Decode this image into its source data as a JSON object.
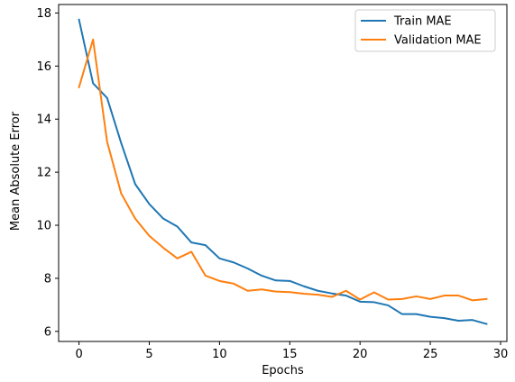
{
  "chart_data": {
    "type": "line",
    "title": "",
    "xlabel": "Epochs",
    "ylabel": "Mean Absolute Error",
    "xlim": [
      -1.45,
      30.45
    ],
    "ylim": [
      5.62,
      18.32
    ],
    "xticks": [
      0,
      5,
      10,
      15,
      20,
      25,
      30
    ],
    "yticks": [
      6,
      8,
      10,
      12,
      14,
      16,
      18
    ],
    "grid": false,
    "legend_position": "top-right",
    "x": [
      0,
      1,
      2,
      3,
      4,
      5,
      6,
      7,
      8,
      9,
      10,
      11,
      12,
      13,
      14,
      15,
      16,
      17,
      18,
      19,
      20,
      21,
      22,
      23,
      24,
      25,
      26,
      27,
      28,
      29
    ],
    "series": [
      {
        "name": "Train MAE",
        "color": "#1f77b4",
        "values": [
          17.75,
          15.35,
          14.8,
          13.1,
          11.55,
          10.8,
          10.25,
          9.95,
          9.35,
          9.25,
          8.75,
          8.6,
          8.37,
          8.1,
          7.92,
          7.9,
          7.7,
          7.53,
          7.43,
          7.35,
          7.12,
          7.1,
          6.98,
          6.65,
          6.65,
          6.55,
          6.5,
          6.4,
          6.43,
          6.28
        ]
      },
      {
        "name": "Validation MAE",
        "color": "#ff7f0e",
        "values": [
          15.2,
          17.0,
          13.15,
          11.2,
          10.25,
          9.6,
          9.15,
          8.75,
          9.0,
          8.1,
          7.9,
          7.8,
          7.53,
          7.58,
          7.5,
          7.48,
          7.42,
          7.38,
          7.3,
          7.53,
          7.2,
          7.47,
          7.2,
          7.22,
          7.32,
          7.22,
          7.35,
          7.35,
          7.17,
          7.22
        ]
      }
    ]
  }
}
